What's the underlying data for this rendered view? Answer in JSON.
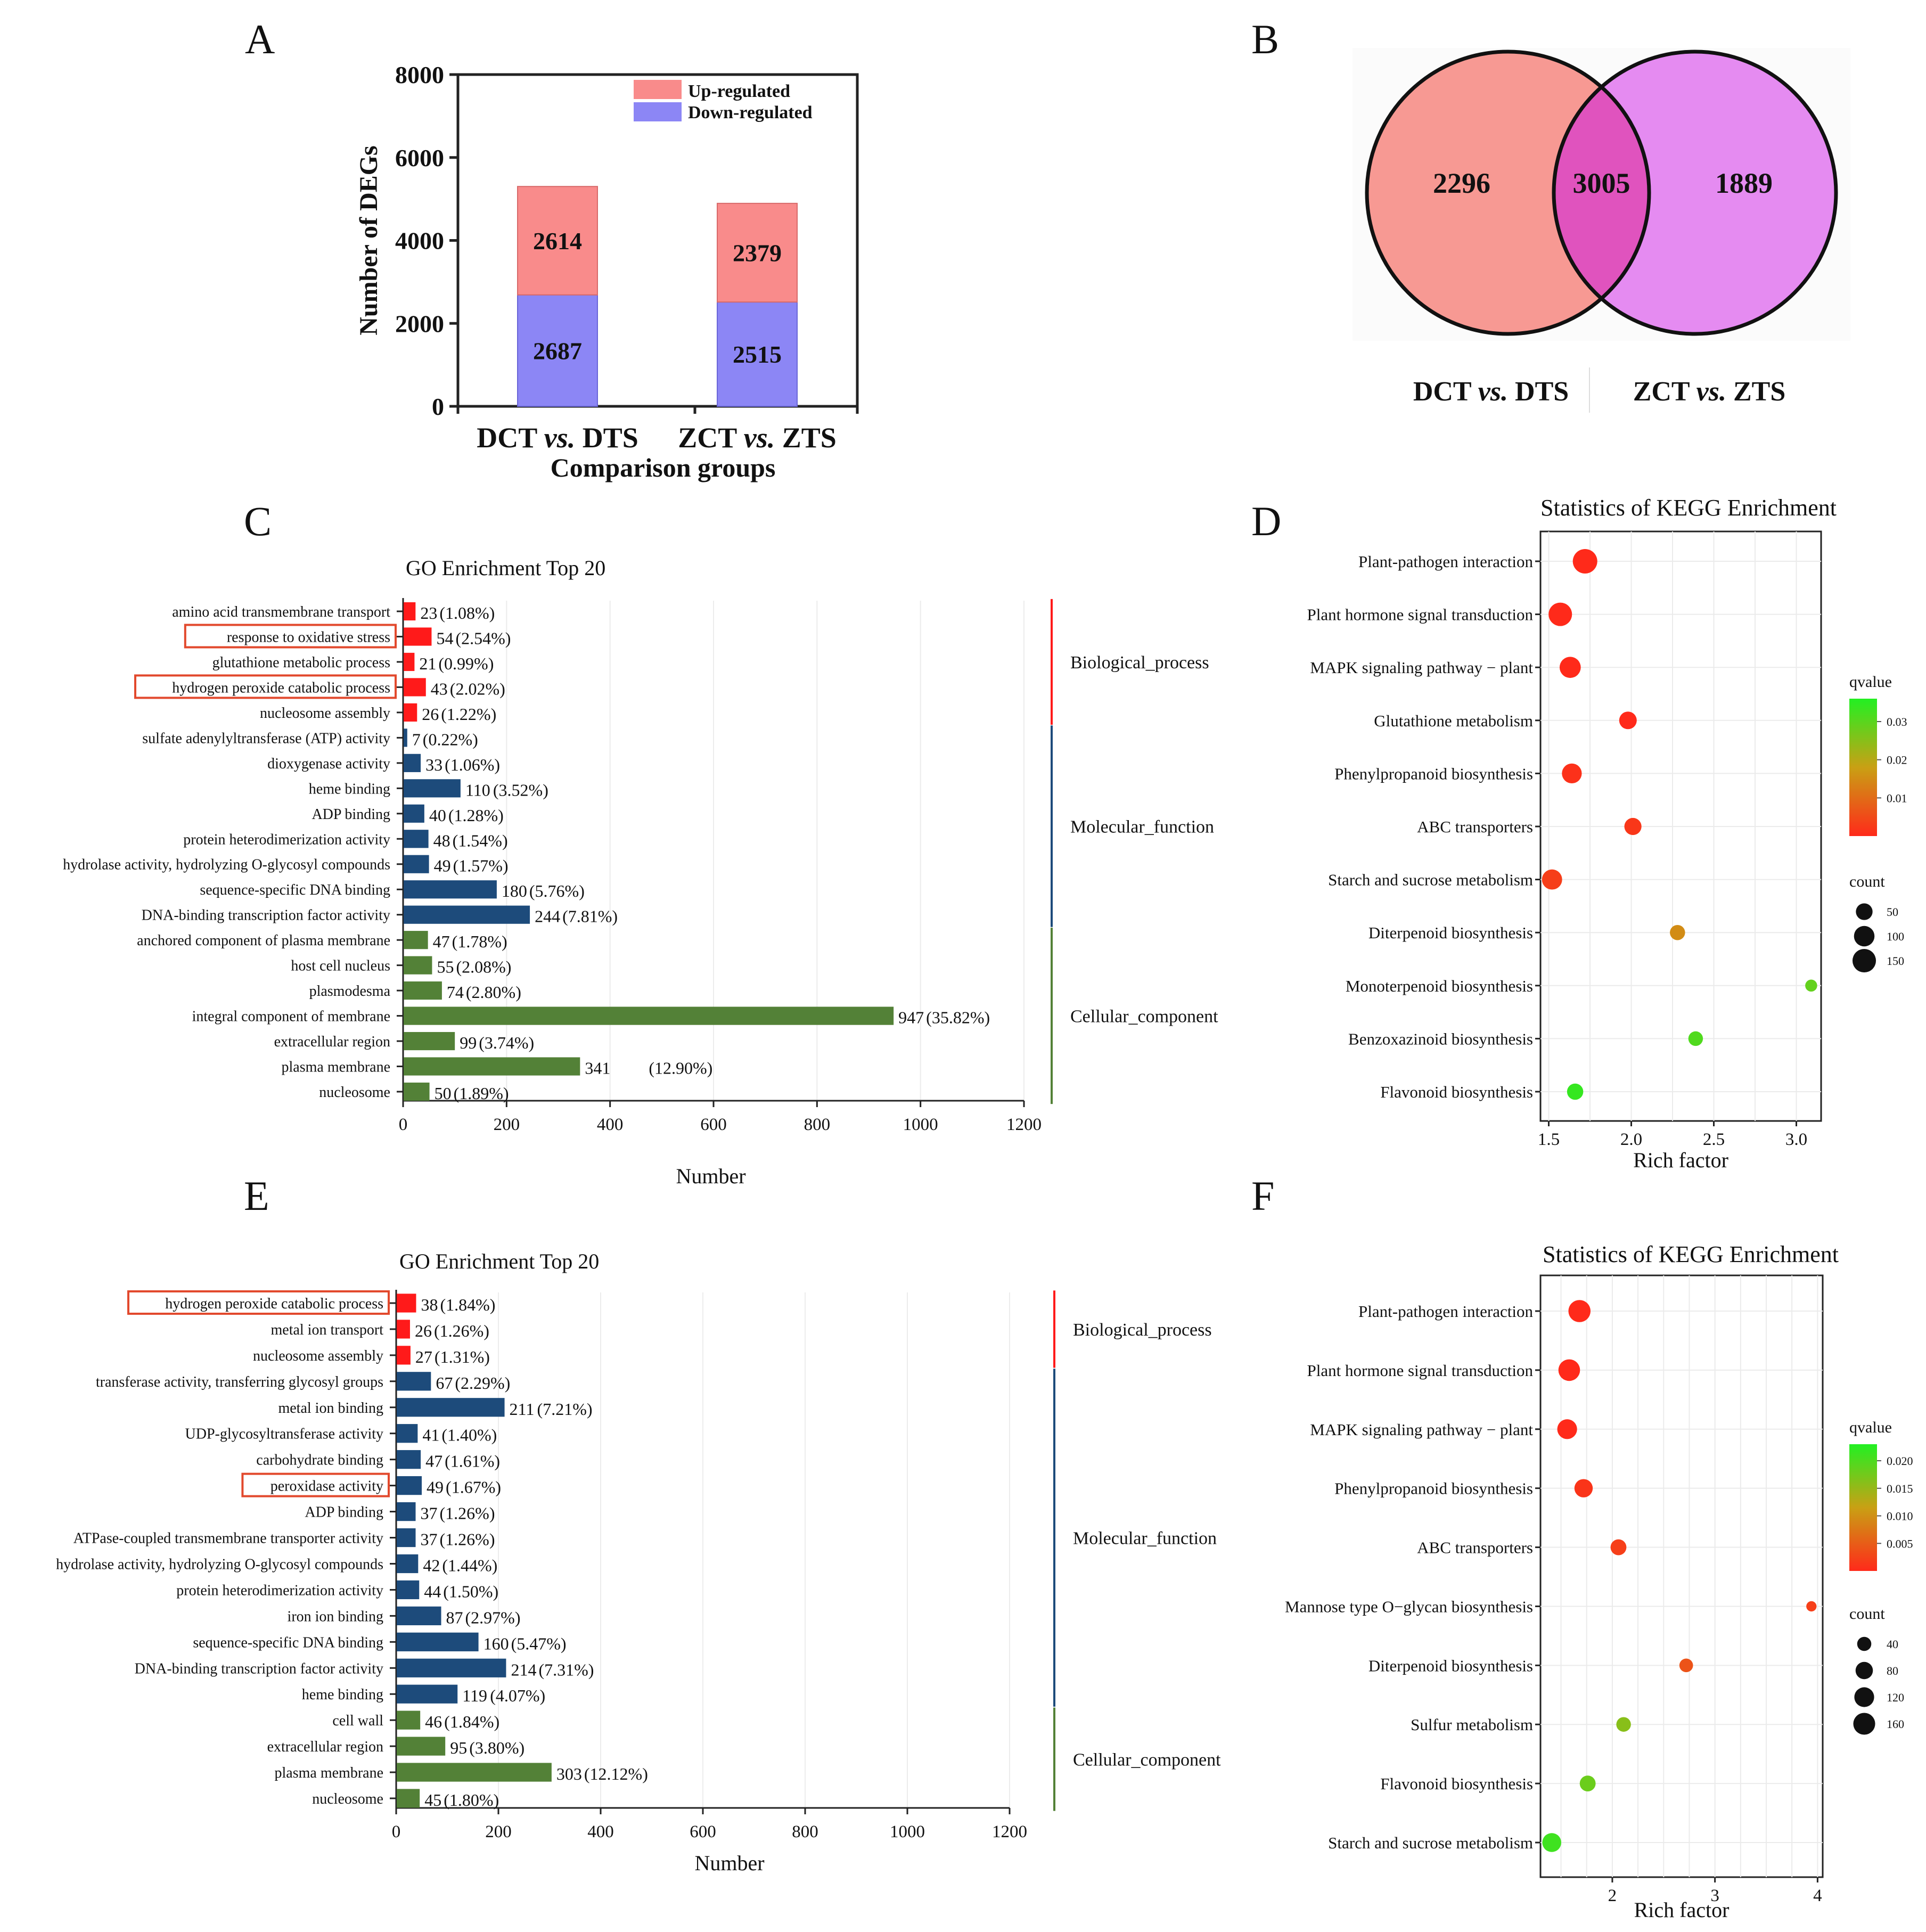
{
  "panel_letters": [
    "A",
    "B",
    "C",
    "D",
    "E",
    "F"
  ],
  "colors": {
    "up": "#F98B8B",
    "down": "#8C86F5",
    "bp": "#FF1A1A",
    "mf": "#1D4B7B",
    "cc": "#538137",
    "venn_left": "#F79993",
    "venn_right": "#E58BF1",
    "venn_overlap": "#E053BE",
    "highlight_box": "#E2492D",
    "qval_low": "#FF2A1A",
    "qval_high": "#22F022"
  },
  "chart_data": [
    {
      "panel": "A",
      "type": "bar",
      "stacked": true,
      "categories": [
        "DCT vs. DTS",
        "ZCT vs. ZTS"
      ],
      "category_parts": [
        [
          "DCT ",
          "vs.",
          " DTS"
        ],
        [
          "ZCT ",
          "vs.",
          " ZTS"
        ]
      ],
      "series": [
        {
          "name": "Down-regulated",
          "values": [
            2687,
            2515
          ]
        },
        {
          "name": "Up-regulated",
          "values": [
            2614,
            2379
          ]
        }
      ],
      "legend": [
        "Up-regulated",
        "Down-regulated"
      ],
      "xlabel": "Comparison groups",
      "ylabel": "Number of DEGs",
      "ylim": [
        0,
        8000
      ],
      "yticks": [
        0,
        2000,
        4000,
        6000,
        8000
      ]
    },
    {
      "panel": "B",
      "type": "venn",
      "sets": [
        {
          "name": "DCT vs. DTS",
          "parts": [
            "DCT ",
            "vs.",
            " DTS"
          ],
          "unique": 2296
        },
        {
          "name": "ZCT vs. ZTS",
          "parts": [
            "ZCT ",
            "vs.",
            " ZTS"
          ],
          "unique": 1889
        }
      ],
      "overlap": 3005
    },
    {
      "panel": "C",
      "type": "bar",
      "orientation": "horizontal",
      "title": "GO Enrichment Top 20",
      "xlabel": "Number",
      "xlim": [
        0,
        1200
      ],
      "xticks": [
        0,
        200,
        400,
        600,
        800,
        1000,
        1200
      ],
      "groups": [
        {
          "name": "Biological_process",
          "color_key": "bp"
        },
        {
          "name": "Molecular_function",
          "color_key": "mf"
        },
        {
          "name": "Cellular_component",
          "color_key": "cc"
        }
      ],
      "terms": [
        {
          "name": "amino acid transmembrane transport",
          "value": 23,
          "pct": "(1.08%)",
          "group": 0,
          "highlight": false
        },
        {
          "name": "response to oxidative stress",
          "value": 54,
          "pct": "(2.54%)",
          "group": 0,
          "highlight": true
        },
        {
          "name": "glutathione metabolic process",
          "value": 21,
          "pct": "(0.99%)",
          "group": 0,
          "highlight": false
        },
        {
          "name": "hydrogen peroxide catabolic process",
          "value": 43,
          "pct": "(2.02%)",
          "group": 0,
          "highlight": true
        },
        {
          "name": "nucleosome assembly",
          "value": 26,
          "pct": "(1.22%)",
          "group": 0,
          "highlight": false
        },
        {
          "name": "sulfate adenylyltransferase (ATP) activity",
          "value": 7,
          "pct": "(0.22%)",
          "group": 1,
          "highlight": false
        },
        {
          "name": "dioxygenase activity",
          "value": 33,
          "pct": "(1.06%)",
          "group": 1,
          "highlight": false
        },
        {
          "name": "heme binding",
          "value": 110,
          "pct": "(3.52%)",
          "group": 1,
          "highlight": false
        },
        {
          "name": "ADP binding",
          "value": 40,
          "pct": "(1.28%)",
          "group": 1,
          "highlight": false
        },
        {
          "name": "protein heterodimerization activity",
          "value": 48,
          "pct": "(1.54%)",
          "group": 1,
          "highlight": false
        },
        {
          "name": "hydrolase activity, hydrolyzing O-glycosyl compounds",
          "value": 49,
          "pct": "(1.57%)",
          "group": 1,
          "highlight": false
        },
        {
          "name": "sequence-specific DNA binding",
          "value": 180,
          "pct": "(5.76%)",
          "group": 1,
          "highlight": false
        },
        {
          "name": "DNA-binding transcription factor activity",
          "value": 244,
          "pct": "(7.81%)",
          "group": 1,
          "highlight": false
        },
        {
          "name": "anchored component of plasma membrane",
          "value": 47,
          "pct": "(1.78%)",
          "group": 2,
          "highlight": false
        },
        {
          "name": "host cell nucleus",
          "value": 55,
          "pct": "(2.08%)",
          "group": 2,
          "highlight": false
        },
        {
          "name": "plasmodesma",
          "value": 74,
          "pct": "(2.80%)",
          "group": 2,
          "highlight": false
        },
        {
          "name": "integral component of membrane",
          "value": 947,
          "pct": "(35.82%)",
          "group": 2,
          "highlight": false
        },
        {
          "name": "extracellular region",
          "value": 99,
          "pct": "(3.74%)",
          "group": 2,
          "highlight": false
        },
        {
          "name": "plasma membrane",
          "value": 341,
          "pct": "(12.90%)",
          "group": 2,
          "highlight": false
        },
        {
          "name": "nucleosome",
          "value": 50,
          "pct": "(1.89%)",
          "group": 2,
          "highlight": false
        }
      ]
    },
    {
      "panel": "D",
      "type": "scatter",
      "title": "Statistics of KEGG Enrichment",
      "xlabel": "Rich factor",
      "xlim": [
        1.45,
        3.15
      ],
      "xticks": [
        1.5,
        2.0,
        2.5,
        3.0
      ],
      "xtick_labels": [
        "1.5",
        "2.0",
        "2.5",
        "3.0"
      ],
      "qvalue_title": "qvalue",
      "qvalue_range": [
        0,
        0.036
      ],
      "qvalue_ticks": [
        0.01,
        0.02,
        0.03
      ],
      "qvalue_labels": [
        "0.01",
        "0.02",
        "0.03"
      ],
      "count_title": "count",
      "count_ticks": [
        50,
        100,
        150
      ],
      "count_labels": [
        "50",
        "100",
        "150"
      ],
      "points": [
        {
          "pathway": "Plant-pathogen interaction",
          "rich_factor": 1.72,
          "qvalue": 0.0,
          "count": 170
        },
        {
          "pathway": "Plant hormone signal transduction",
          "rich_factor": 1.57,
          "qvalue": 0.0,
          "count": 150
        },
        {
          "pathway": "MAPK signaling pathway − plant",
          "rich_factor": 1.63,
          "qvalue": 0.0,
          "count": 110
        },
        {
          "pathway": "Glutathione metabolism",
          "rich_factor": 1.98,
          "qvalue": 0.0,
          "count": 60
        },
        {
          "pathway": "Phenylpropanoid biosynthesis",
          "rich_factor": 1.64,
          "qvalue": 0.001,
          "count": 90
        },
        {
          "pathway": "ABC transporters",
          "rich_factor": 2.01,
          "qvalue": 0.002,
          "count": 55
        },
        {
          "pathway": "Starch and sucrose metabolism",
          "rich_factor": 1.52,
          "qvalue": 0.003,
          "count": 95
        },
        {
          "pathway": "Diterpenoid biosynthesis",
          "rich_factor": 2.28,
          "qvalue": 0.015,
          "count": 35
        },
        {
          "pathway": "Monoterpenoid biosynthesis",
          "rich_factor": 3.09,
          "qvalue": 0.029,
          "count": 12
        },
        {
          "pathway": "Benzoxazinoid biosynthesis",
          "rich_factor": 2.39,
          "qvalue": 0.031,
          "count": 30
        },
        {
          "pathway": "Flavonoid biosynthesis",
          "rich_factor": 1.66,
          "qvalue": 0.034,
          "count": 45
        }
      ]
    },
    {
      "panel": "E",
      "type": "bar",
      "orientation": "horizontal",
      "title": "GO Enrichment Top 20",
      "xlabel": "Number",
      "xlim": [
        0,
        1200
      ],
      "xticks": [
        0,
        200,
        400,
        600,
        800,
        1000,
        1200
      ],
      "groups": [
        {
          "name": "Biological_process",
          "color_key": "bp"
        },
        {
          "name": "Molecular_function",
          "color_key": "mf"
        },
        {
          "name": "Cellular_component",
          "color_key": "cc"
        }
      ],
      "terms": [
        {
          "name": "hydrogen peroxide catabolic process",
          "value": 38,
          "pct": "(1.84%)",
          "group": 0,
          "highlight": true
        },
        {
          "name": "metal ion transport",
          "value": 26,
          "pct": "(1.26%)",
          "group": 0,
          "highlight": false
        },
        {
          "name": "nucleosome assembly",
          "value": 27,
          "pct": "(1.31%)",
          "group": 0,
          "highlight": false
        },
        {
          "name": "transferase activity, transferring glycosyl groups",
          "value": 67,
          "pct": "(2.29%)",
          "group": 1,
          "highlight": false
        },
        {
          "name": "metal ion binding",
          "value": 211,
          "pct": "(7.21%)",
          "group": 1,
          "highlight": false
        },
        {
          "name": "UDP-glycosyltransferase activity",
          "value": 41,
          "pct": "(1.40%)",
          "group": 1,
          "highlight": false
        },
        {
          "name": "carbohydrate binding",
          "value": 47,
          "pct": "(1.61%)",
          "group": 1,
          "highlight": false
        },
        {
          "name": "peroxidase activity",
          "value": 49,
          "pct": "(1.67%)",
          "group": 1,
          "highlight": true
        },
        {
          "name": "ADP binding",
          "value": 37,
          "pct": "(1.26%)",
          "group": 1,
          "highlight": false
        },
        {
          "name": "ATPase-coupled transmembrane transporter activity",
          "value": 37,
          "pct": "(1.26%)",
          "group": 1,
          "highlight": false
        },
        {
          "name": "hydrolase activity, hydrolyzing O-glycosyl compounds",
          "value": 42,
          "pct": "(1.44%)",
          "group": 1,
          "highlight": false
        },
        {
          "name": "protein heterodimerization activity",
          "value": 44,
          "pct": "(1.50%)",
          "group": 1,
          "highlight": false
        },
        {
          "name": "iron ion binding",
          "value": 87,
          "pct": "(2.97%)",
          "group": 1,
          "highlight": false
        },
        {
          "name": "sequence-specific DNA binding",
          "value": 160,
          "pct": "(5.47%)",
          "group": 1,
          "highlight": false
        },
        {
          "name": "DNA-binding transcription factor activity",
          "value": 214,
          "pct": "(7.31%)",
          "group": 1,
          "highlight": false
        },
        {
          "name": "heme binding",
          "value": 119,
          "pct": "(4.07%)",
          "group": 1,
          "highlight": false
        },
        {
          "name": "cell wall",
          "value": 46,
          "pct": "(1.84%)",
          "group": 2,
          "highlight": false
        },
        {
          "name": "extracellular region",
          "value": 95,
          "pct": "(3.80%)",
          "group": 2,
          "highlight": false
        },
        {
          "name": "plasma membrane",
          "value": 303,
          "pct": "(12.12%)",
          "group": 2,
          "highlight": false
        },
        {
          "name": "nucleosome",
          "value": 45,
          "pct": "(1.80%)",
          "group": 2,
          "highlight": false
        }
      ]
    },
    {
      "panel": "F",
      "type": "scatter",
      "title": "Statistics of KEGG Enrichment",
      "xlabel": "Rich factor",
      "xlim": [
        1.3,
        4.05
      ],
      "xticks": [
        2,
        3,
        4
      ],
      "xtick_labels": [
        "2",
        "3",
        "4"
      ],
      "qvalue_title": "qvalue",
      "qvalue_range": [
        0,
        0.023
      ],
      "qvalue_ticks": [
        0.005,
        0.01,
        0.015,
        0.02
      ],
      "qvalue_labels": [
        "0.005",
        "0.010",
        "0.015",
        "0.020"
      ],
      "count_title": "count",
      "count_ticks": [
        40,
        80,
        120,
        160
      ],
      "count_labels": [
        "40",
        "80",
        "120",
        "160"
      ],
      "points": [
        {
          "pathway": "Plant-pathogen interaction",
          "rich_factor": 1.68,
          "qvalue": 0.0,
          "count": 165
        },
        {
          "pathway": "Plant hormone signal transduction",
          "rich_factor": 1.58,
          "qvalue": 0.0,
          "count": 155
        },
        {
          "pathway": "MAPK signaling pathway − plant",
          "rich_factor": 1.56,
          "qvalue": 0.0,
          "count": 120
        },
        {
          "pathway": "Phenylpropanoid biosynthesis",
          "rich_factor": 1.72,
          "qvalue": 0.001,
          "count": 95
        },
        {
          "pathway": "ABC transporters",
          "rich_factor": 2.06,
          "qvalue": 0.002,
          "count": 60
        },
        {
          "pathway": "Mannose type O−glycan biosynthesis",
          "rich_factor": 3.94,
          "qvalue": 0.002,
          "count": 10
        },
        {
          "pathway": "Diterpenoid biosynthesis",
          "rich_factor": 2.72,
          "qvalue": 0.004,
          "count": 35
        },
        {
          "pathway": "Sulfur metabolism",
          "rich_factor": 2.11,
          "qvalue": 0.016,
          "count": 45
        },
        {
          "pathway": "Flavonoid biosynthesis",
          "rich_factor": 1.76,
          "qvalue": 0.018,
          "count": 60
        },
        {
          "pathway": "Starch and sucrose metabolism",
          "rich_factor": 1.41,
          "qvalue": 0.021,
          "count": 105
        }
      ]
    }
  ]
}
